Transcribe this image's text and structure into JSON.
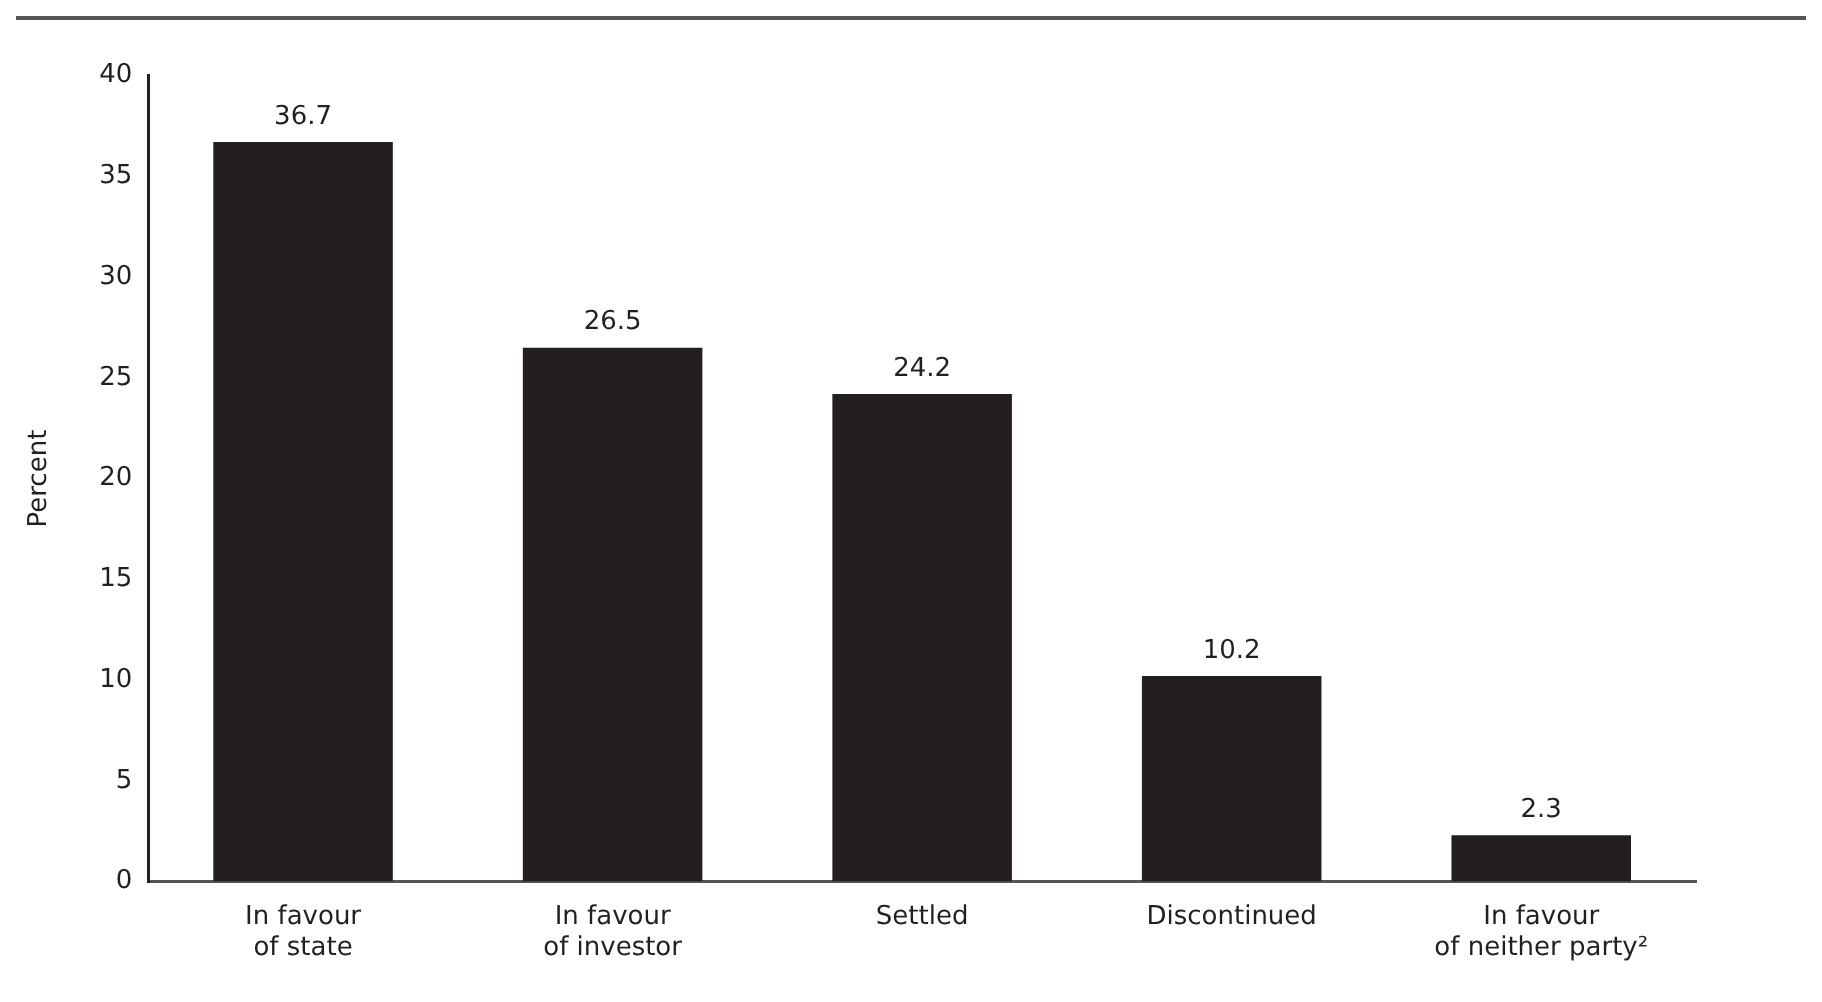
{
  "chart_data": {
    "type": "bar",
    "categories": [
      "In favour of state",
      "In favour of investor",
      "Settled",
      "Discontinued",
      "In favour of neither party²"
    ],
    "values": [
      36.7,
      26.5,
      24.2,
      10.2,
      2.3
    ],
    "color": "#231f20",
    "ylabel": "Percent",
    "ylim": [
      0,
      40
    ],
    "yticks": [
      0,
      5,
      10,
      15,
      20,
      25,
      30,
      35,
      40
    ],
    "grid": false,
    "legend": false,
    "data_labels": true
  }
}
